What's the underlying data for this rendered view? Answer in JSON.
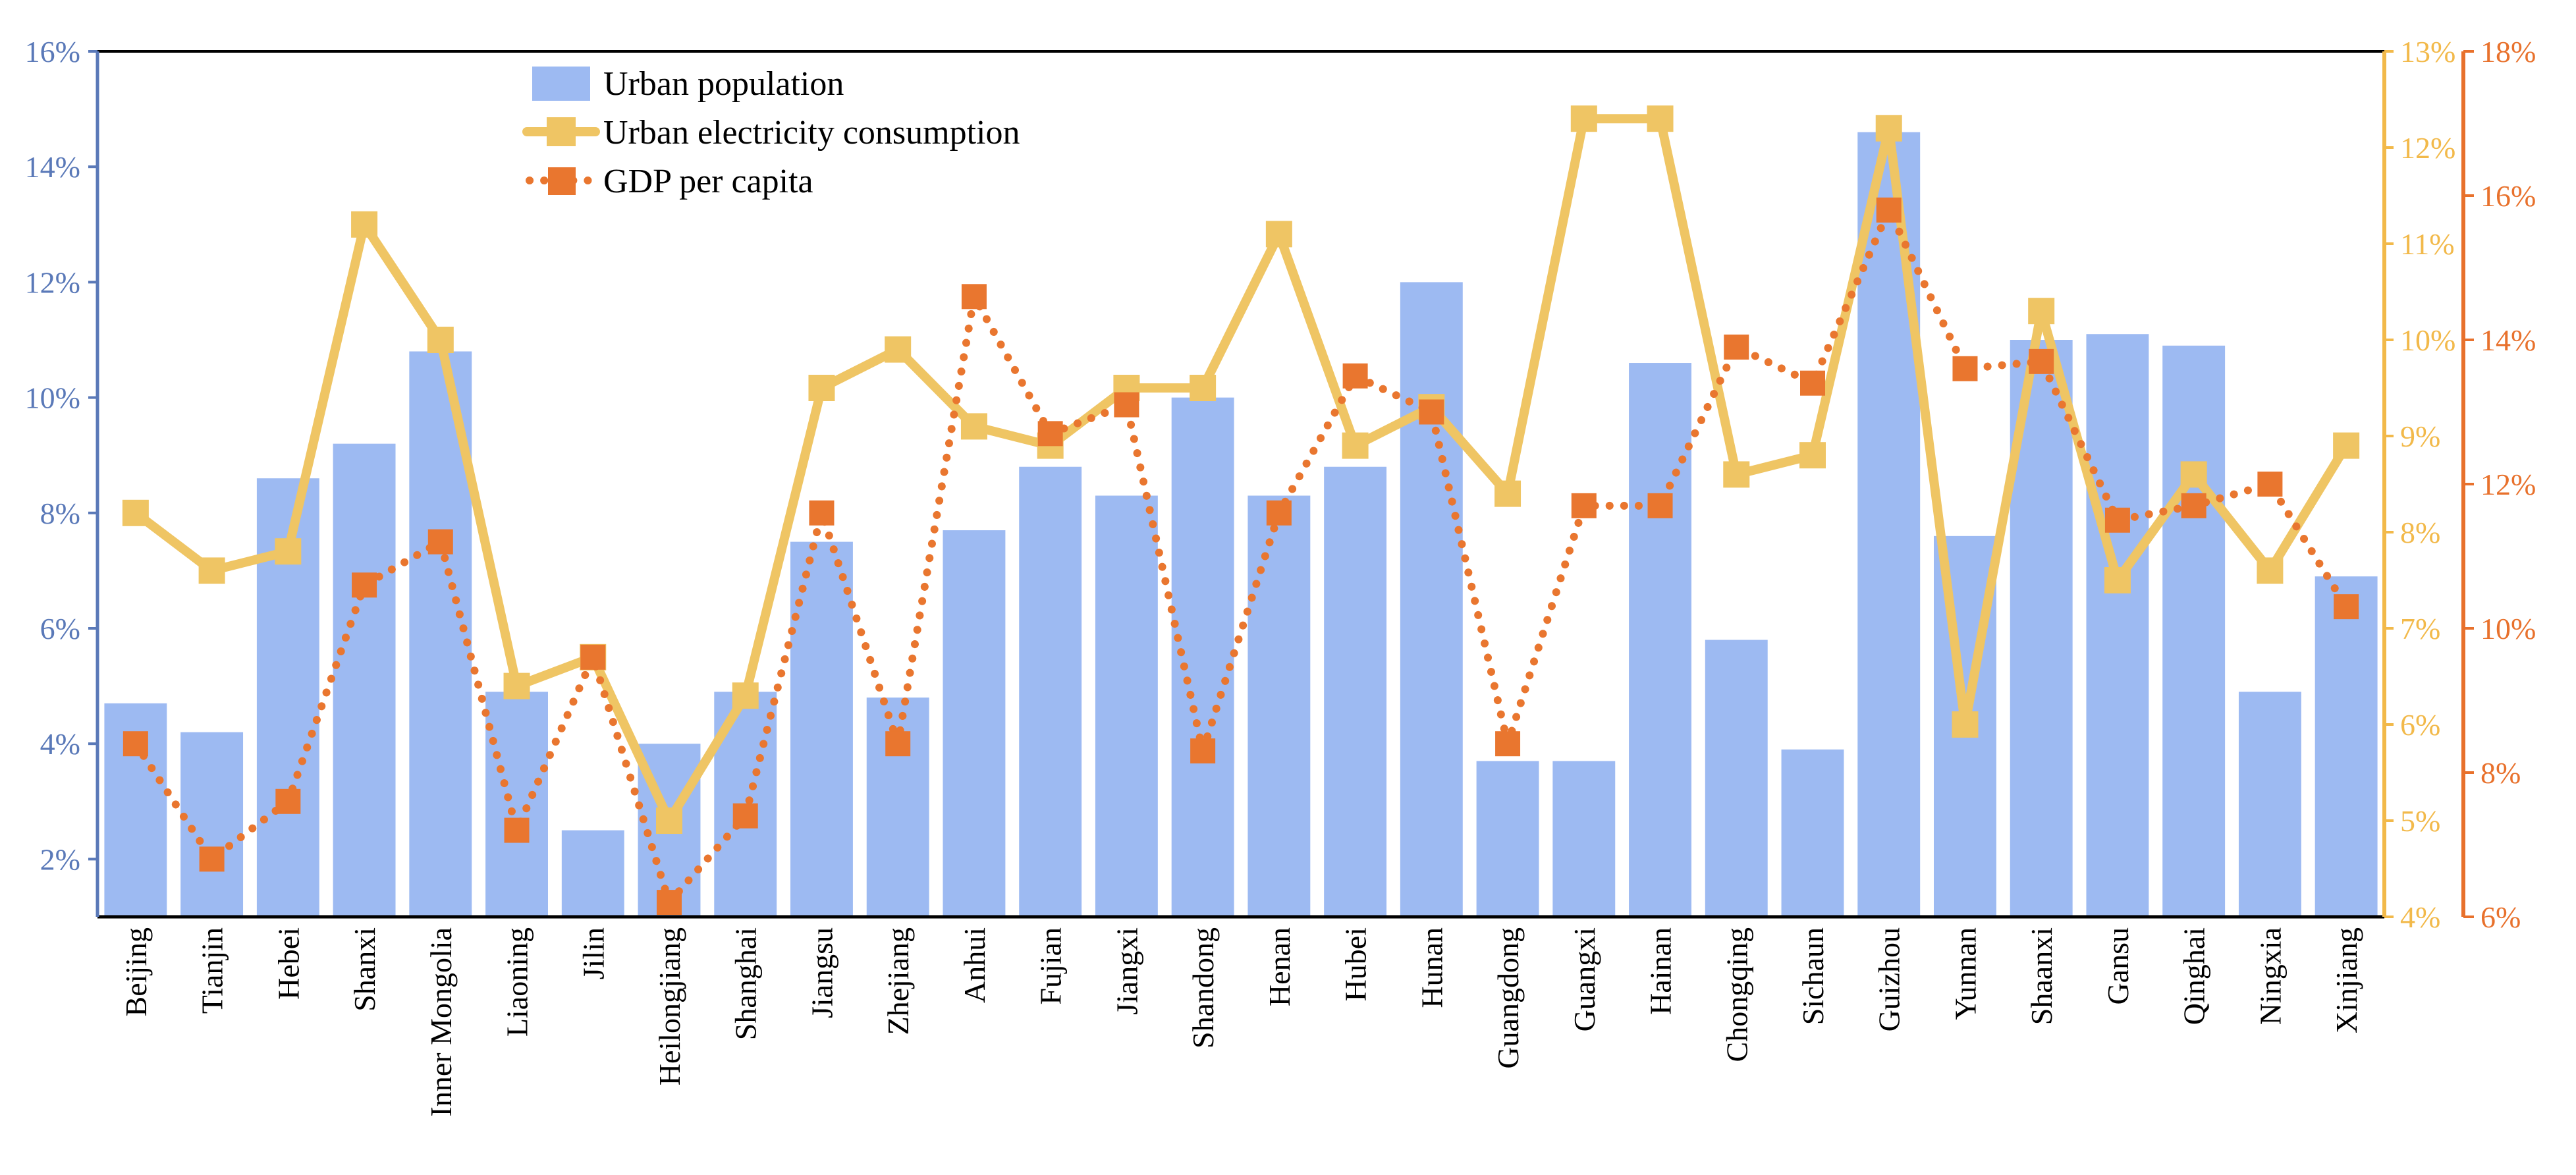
{
  "chart_data": {
    "type": "bar-line-combo",
    "categories": [
      "Beijing",
      "Tianjin",
      "Hebei",
      "Shanxi",
      "Inner Mongolia",
      "Liaoning",
      "Jilin",
      "Heilongjiang",
      "Shanghai",
      "Jiangsu",
      "Zhejiang",
      "Anhui",
      "Fujian",
      "Jiangxi",
      "Shandong",
      "Henan",
      "Hubei",
      "Hunan",
      "Guangdong",
      "Guangxi",
      "Hainan",
      "Chongqing",
      "Sichaun",
      "Guizhou",
      "Yunnan",
      "Shaanxi",
      "Gansu",
      "Qinghai",
      "Ningxia",
      "Xinjiang"
    ],
    "series": [
      {
        "name": "Urban population",
        "type": "bar",
        "axis": "left",
        "color": "#9dbaf2",
        "values": [
          4.7,
          4.2,
          8.6,
          9.2,
          10.8,
          4.9,
          2.5,
          4.0,
          4.9,
          7.5,
          4.8,
          7.7,
          8.8,
          8.3,
          10.0,
          8.3,
          8.8,
          12.0,
          3.7,
          3.7,
          10.6,
          5.8,
          3.9,
          14.6,
          7.6,
          11.0,
          11.1,
          10.9,
          4.9,
          6.9
        ]
      },
      {
        "name": "Urban electricity consumption",
        "type": "line",
        "axis": "right1",
        "color": "#efc564",
        "marker": "square",
        "values": [
          8.2,
          7.6,
          7.8,
          11.2,
          10.0,
          6.4,
          6.7,
          5.0,
          6.3,
          9.5,
          9.9,
          9.1,
          8.9,
          9.5,
          9.5,
          11.1,
          8.9,
          9.3,
          8.4,
          12.3,
          12.3,
          8.6,
          8.8,
          12.2,
          6.0,
          10.3,
          7.5,
          8.6,
          7.6,
          8.9
        ]
      },
      {
        "name": "GDP per capita",
        "type": "line",
        "axis": "right2",
        "color": "#e9762f",
        "marker": "square",
        "values": [
          8.4,
          6.8,
          7.6,
          10.6,
          11.2,
          7.2,
          9.6,
          6.2,
          7.4,
          11.6,
          8.4,
          14.6,
          12.7,
          13.1,
          8.3,
          11.6,
          13.5,
          13.0,
          8.4,
          11.7,
          11.7,
          13.9,
          13.4,
          15.8,
          13.6,
          13.7,
          11.5,
          11.7,
          12.0,
          10.3
        ]
      }
    ],
    "axes": {
      "left": {
        "min": 1,
        "max": 16,
        "ticks": [
          2,
          4,
          6,
          8,
          10,
          12,
          14,
          16
        ],
        "tick_labels": [
          "2%",
          "4%",
          "6%",
          "8%",
          "10%",
          "12%",
          "14%",
          "16%"
        ],
        "color": "#5a79b8"
      },
      "right1": {
        "min": 4,
        "max": 13,
        "ticks": [
          4,
          5,
          6,
          7,
          8,
          9,
          10,
          11,
          12,
          13
        ],
        "tick_labels": [
          "4%",
          "5%",
          "6%",
          "7%",
          "8%",
          "9%",
          "10%",
          "11%",
          "12%",
          "13%"
        ],
        "color": "#f2b94a"
      },
      "right2": {
        "min": 6,
        "max": 18,
        "ticks": [
          6,
          8,
          10,
          12,
          14,
          16,
          18
        ],
        "tick_labels": [
          "6%",
          "8%",
          "10%",
          "12%",
          "14%",
          "16%",
          "18%"
        ],
        "color": "#e8712c"
      }
    },
    "title": "",
    "xlabel": "",
    "ylabel": "",
    "legend_position": "top-left"
  }
}
